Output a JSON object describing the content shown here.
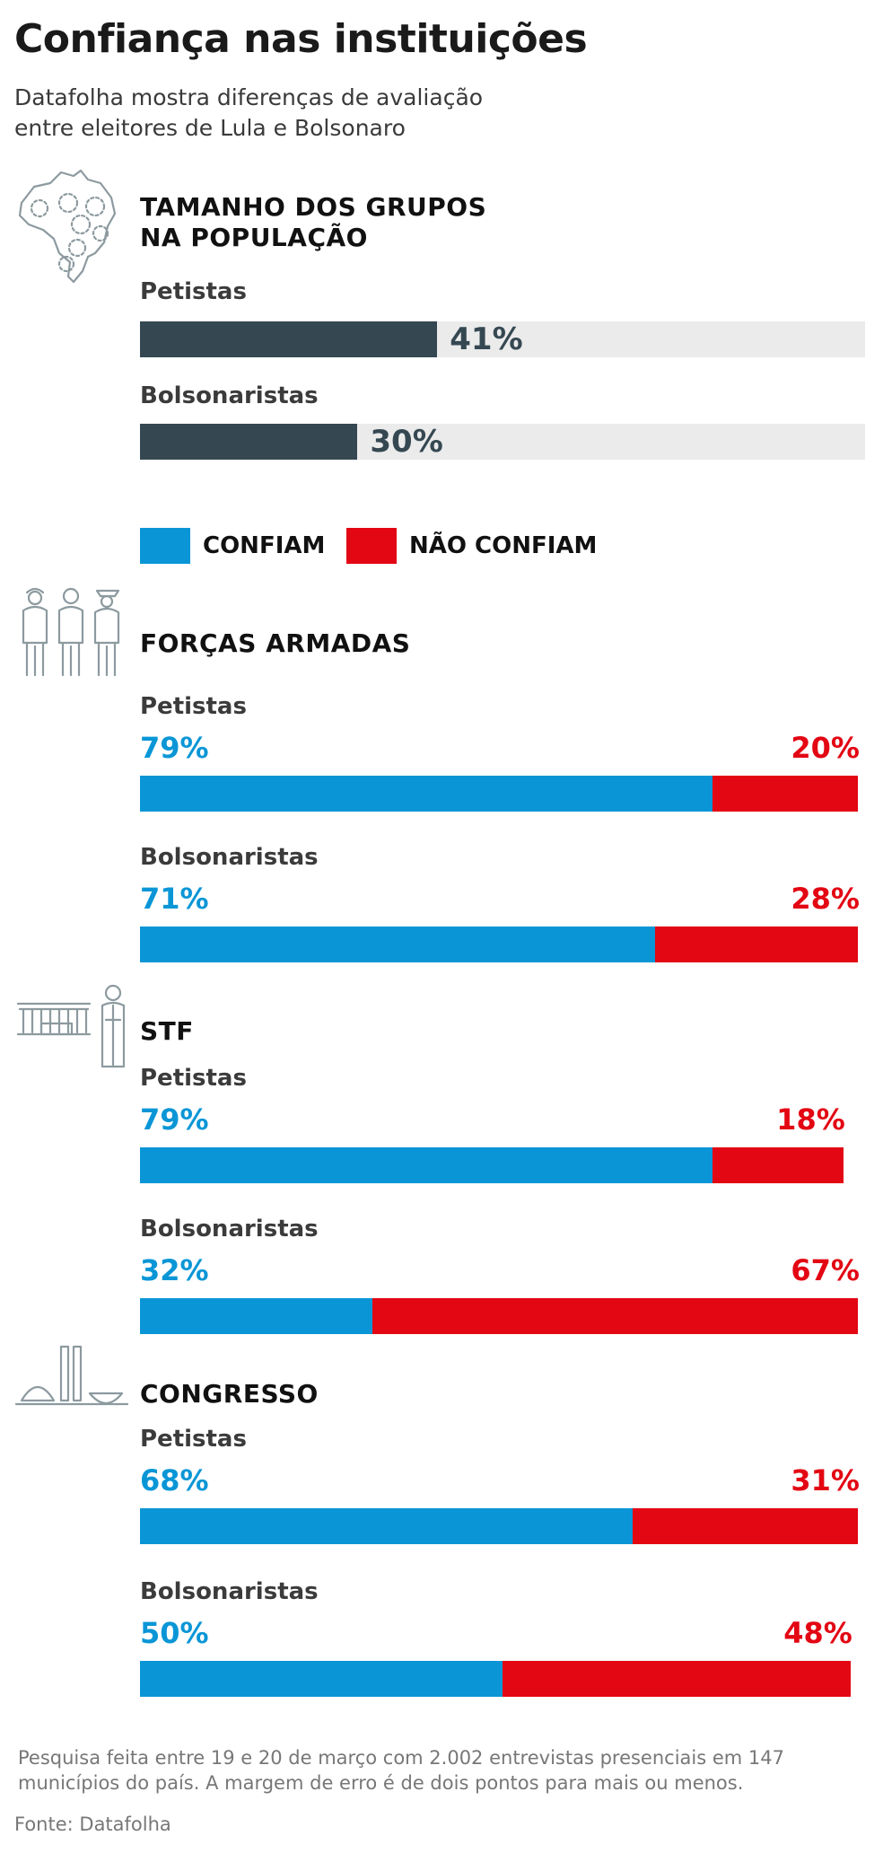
{
  "header": {
    "title": "Confiança nas instituições",
    "subtitle_line1": "Datafolha mostra diferenças de avaliação",
    "subtitle_line2": "entre eleitores de Lula e Bolsonaro"
  },
  "legend": {
    "confiam": "CONFIAM",
    "nao_confiam": "NÃO CONFIAM",
    "colors": {
      "confiam": "#0a96d6",
      "nao_confiam": "#e30613",
      "size": "#354852",
      "track": "#ebebeb"
    }
  },
  "icons": [
    "brazil-map-icon",
    "armed-forces-icon",
    "stf-icon",
    "congress-icon"
  ],
  "chart_data": [
    {
      "type": "bar",
      "title_line1": "TAMANHO DOS GRUPOS",
      "title_line2": "NA POPULAÇÃO",
      "categories": [
        "Petistas",
        "Bolsonaristas"
      ],
      "values": [
        41,
        30
      ],
      "value_labels": [
        "41%",
        "30%"
      ],
      "xlim": [
        0,
        100
      ]
    },
    {
      "type": "bar",
      "stacked": true,
      "title": "FORÇAS ARMADAS",
      "categories": [
        "Petistas",
        "Bolsonaristas"
      ],
      "series": [
        {
          "name": "CONFIAM",
          "values": [
            79,
            71
          ],
          "labels": [
            "79%",
            "71%"
          ]
        },
        {
          "name": "NÃO CONFIAM",
          "values": [
            20,
            28
          ],
          "labels": [
            "20%",
            "28%"
          ]
        }
      ],
      "xlim": [
        0,
        100
      ]
    },
    {
      "type": "bar",
      "stacked": true,
      "title": "STF",
      "categories": [
        "Petistas",
        "Bolsonaristas"
      ],
      "series": [
        {
          "name": "CONFIAM",
          "values": [
            79,
            32
          ],
          "labels": [
            "79%",
            "32%"
          ]
        },
        {
          "name": "NÃO CONFIAM",
          "values": [
            18,
            67
          ],
          "labels": [
            "18%",
            "67%"
          ]
        }
      ],
      "xlim": [
        0,
        100
      ]
    },
    {
      "type": "bar",
      "stacked": true,
      "title": "CONGRESSO",
      "categories": [
        "Petistas",
        "Bolsonaristas"
      ],
      "series": [
        {
          "name": "CONFIAM",
          "values": [
            68,
            50
          ],
          "labels": [
            "68%",
            "50%"
          ]
        },
        {
          "name": "NÃO CONFIAM",
          "values": [
            31,
            48
          ],
          "labels": [
            "31%",
            "48%"
          ]
        }
      ],
      "xlim": [
        0,
        100
      ]
    }
  ],
  "footer": {
    "note_line1": "Pesquisa feita entre 19 e 20 de março com 2.002 entrevistas presenciais em 147",
    "note_line2": "municípios do país. A margem de erro é de dois pontos para mais ou menos.",
    "source": "Fonte: Datafolha"
  }
}
